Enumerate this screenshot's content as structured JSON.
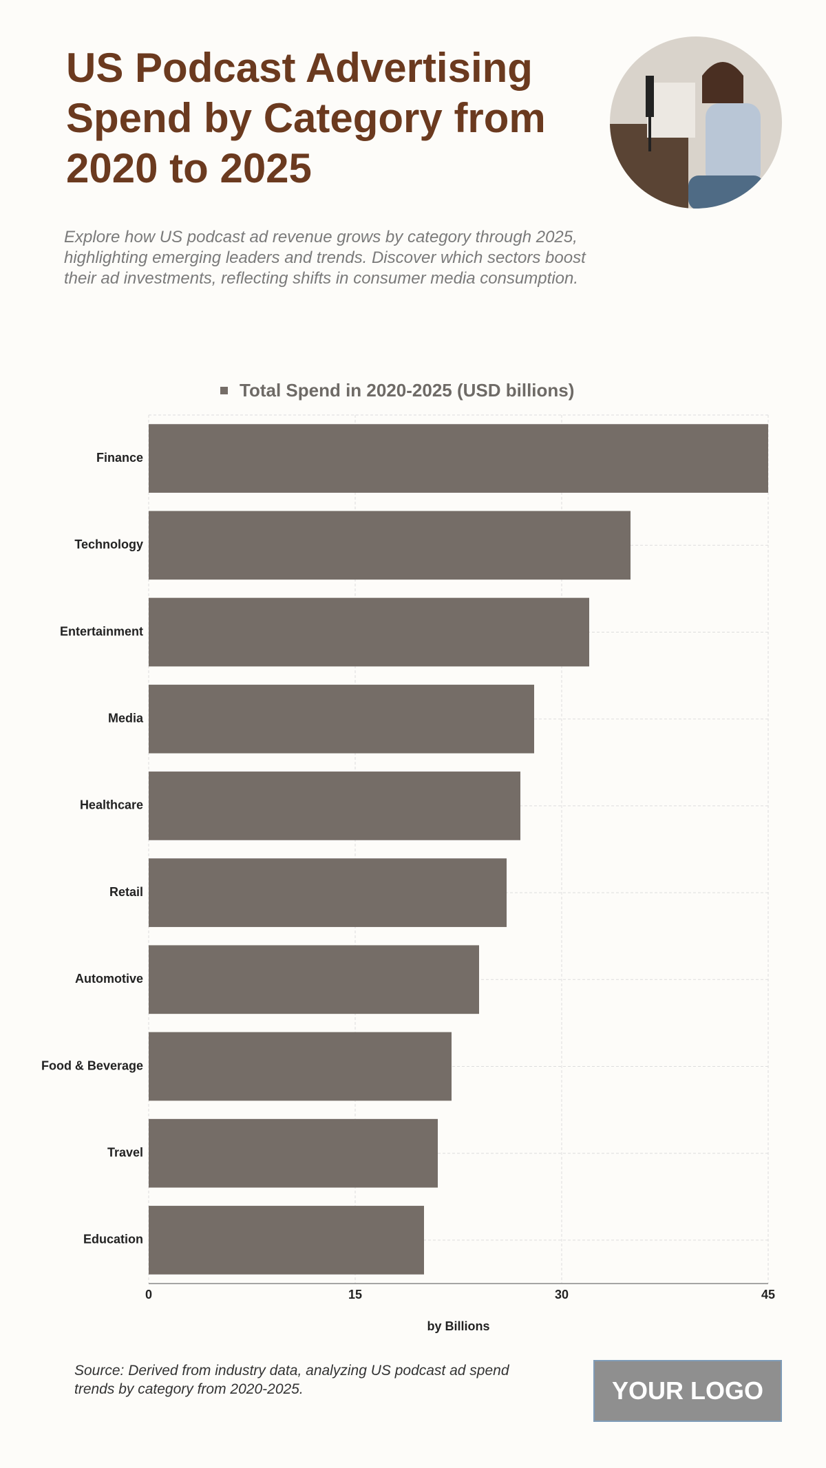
{
  "chart_data": {
    "type": "bar",
    "orientation": "horizontal",
    "title": "US Podcast Advertising Spend by Category from 2020 to 2025",
    "subtitle": "Explore how US podcast ad revenue grows by category through 2025, highlighting emerging leaders and trends. Discover which sectors boost their ad investments, reflecting shifts in consumer media consumption.",
    "categories": [
      "Finance",
      "Technology",
      "Entertainment",
      "Media",
      "Healthcare",
      "Retail",
      "Automotive",
      "Food & Beverage",
      "Travel",
      "Education"
    ],
    "series": [
      {
        "name": "Total Spend in 2020-2025 (USD billions)",
        "color": "#756d67",
        "values": [
          45,
          35,
          32,
          28,
          27,
          26,
          24,
          22,
          21,
          20
        ]
      }
    ],
    "xlim": [
      0,
      45
    ],
    "xticks": [
      0,
      15,
      30,
      45
    ],
    "xlabel": "by Billions",
    "grid": true,
    "legend": "top",
    "source": "Source: Derived from industry data, analyzing US podcast ad spend trends by category from 2020-2025.",
    "logo": "YOUR LOGO"
  }
}
